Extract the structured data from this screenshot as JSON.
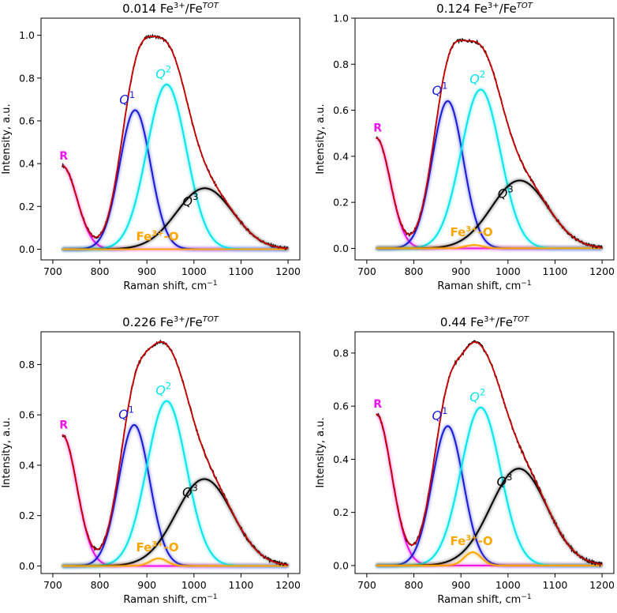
{
  "colors": {
    "raw": "#000000",
    "envelope": "#cc0000",
    "R": "#ee11ee",
    "Q1": "#1a1ad6",
    "Q2": "#00e5ee",
    "Q3": "#000000",
    "Fe": "#ffa500",
    "baseline": "#ff6a00"
  },
  "chart_data": [
    {
      "type": "line",
      "title": "0.014 Fe3+/FeTOT",
      "xlabel": "Raman shift, cm−1",
      "ylabel": "Intensity, a.u.",
      "xlim": [
        700,
        1200
      ],
      "ylim": [
        -0.05,
        1.08
      ],
      "xticks": [
        "700",
        "800",
        "900",
        "1000",
        "1100",
        "1200"
      ],
      "yticks": [
        "0.0",
        "0.2",
        "0.4",
        "0.6",
        "0.8",
        "1.0"
      ],
      "ytick_values": [
        0,
        0.2,
        0.4,
        0.6,
        0.8,
        1.0
      ],
      "labels": {
        "R": "R",
        "Q1": "Q1",
        "Q2": "Q2",
        "Q3": "Q3",
        "Fe": "Fe3+-O"
      },
      "series": [
        {
          "name": "R",
          "type": "tail",
          "x_start": 720,
          "amplitude": 0.39,
          "decay": 42
        },
        {
          "name": "Q1",
          "type": "gaussian",
          "center": 875,
          "amplitude": 0.65,
          "sigma": 33
        },
        {
          "name": "Q2",
          "type": "gaussian",
          "center": 942,
          "amplitude": 0.77,
          "sigma": 42
        },
        {
          "name": "Q3",
          "type": "gaussian",
          "center": 1023,
          "amplitude": 0.285,
          "sigma": 60
        },
        {
          "name": "Fe3+-O",
          "type": "gaussian",
          "center": 930,
          "amplitude": 0.0,
          "sigma": 18
        }
      ]
    },
    {
      "type": "line",
      "title": "0.124 Fe3+/FeTOT",
      "xlabel": "Raman shift, cm−1",
      "ylabel": "Intensity, a.u.",
      "xlim": [
        700,
        1200
      ],
      "ylim": [
        -0.05,
        1.0
      ],
      "xticks": [
        "700",
        "800",
        "900",
        "1000",
        "1100",
        "1200"
      ],
      "yticks": [
        "0.0",
        "0.2",
        "0.4",
        "0.6",
        "0.8",
        "1.0"
      ],
      "ytick_values": [
        0,
        0.2,
        0.4,
        0.6,
        0.8,
        1.0
      ],
      "labels": {
        "R": "R",
        "Q1": "Q1",
        "Q2": "Q2",
        "Q3": "Q3",
        "Fe": "Fe3+-O"
      },
      "series": [
        {
          "name": "R",
          "type": "tail",
          "x_start": 720,
          "amplitude": 0.48,
          "decay": 40
        },
        {
          "name": "Q1",
          "type": "gaussian",
          "center": 872,
          "amplitude": 0.64,
          "sigma": 33
        },
        {
          "name": "Q2",
          "type": "gaussian",
          "center": 942,
          "amplitude": 0.69,
          "sigma": 42
        },
        {
          "name": "Q3",
          "type": "gaussian",
          "center": 1025,
          "amplitude": 0.295,
          "sigma": 60
        },
        {
          "name": "Fe3+-O",
          "type": "gaussian",
          "center": 928,
          "amplitude": 0.015,
          "sigma": 18
        }
      ]
    },
    {
      "type": "line",
      "title": "0.226 Fe3+/FeTOT",
      "xlabel": "Raman shift, cm−1",
      "ylabel": "Intensity, a.u.",
      "xlim": [
        700,
        1200
      ],
      "ylim": [
        -0.03,
        0.93
      ],
      "xticks": [
        "700",
        "800",
        "900",
        "1000",
        "1100",
        "1200"
      ],
      "yticks": [
        "0.0",
        "0.2",
        "0.4",
        "0.6",
        "0.8"
      ],
      "ytick_values": [
        0,
        0.2,
        0.4,
        0.6,
        0.8
      ],
      "labels": {
        "R": "R",
        "Q1": "Q1",
        "Q2": "Q2",
        "Q3": "Q3",
        "Fe": "Fe3+-O"
      },
      "series": [
        {
          "name": "R",
          "type": "tail",
          "x_start": 720,
          "amplitude": 0.52,
          "decay": 42
        },
        {
          "name": "Q1",
          "type": "gaussian",
          "center": 873,
          "amplitude": 0.56,
          "sigma": 33
        },
        {
          "name": "Q2",
          "type": "gaussian",
          "center": 942,
          "amplitude": 0.655,
          "sigma": 42
        },
        {
          "name": "Q3",
          "type": "gaussian",
          "center": 1022,
          "amplitude": 0.345,
          "sigma": 60
        },
        {
          "name": "Fe3+-O",
          "type": "gaussian",
          "center": 925,
          "amplitude": 0.03,
          "sigma": 18
        }
      ]
    },
    {
      "type": "line",
      "title": "0.44 Fe3+/FeTOT",
      "xlabel": "Raman shift, cm−1",
      "ylabel": "Intensity, a.u.",
      "xlim": [
        700,
        1200
      ],
      "ylim": [
        -0.03,
        0.88
      ],
      "xticks": [
        "700",
        "800",
        "900",
        "1000",
        "1100",
        "1200"
      ],
      "yticks": [
        "0.0",
        "0.2",
        "0.4",
        "0.6",
        "0.8"
      ],
      "ytick_values": [
        0,
        0.2,
        0.4,
        0.6,
        0.8
      ],
      "labels": {
        "R": "R",
        "Q1": "Q1",
        "Q2": "Q2",
        "Q3": "Q3",
        "Fe": "Fe3+-O"
      },
      "series": [
        {
          "name": "R",
          "type": "tail",
          "x_start": 720,
          "amplitude": 0.57,
          "decay": 44
        },
        {
          "name": "Q1",
          "type": "gaussian",
          "center": 872,
          "amplitude": 0.525,
          "sigma": 33
        },
        {
          "name": "Q2",
          "type": "gaussian",
          "center": 942,
          "amplitude": 0.595,
          "sigma": 42
        },
        {
          "name": "Q3",
          "type": "gaussian",
          "center": 1023,
          "amplitude": 0.365,
          "sigma": 60
        },
        {
          "name": "Fe3+-O",
          "type": "gaussian",
          "center": 925,
          "amplitude": 0.05,
          "sigma": 18
        }
      ]
    }
  ]
}
